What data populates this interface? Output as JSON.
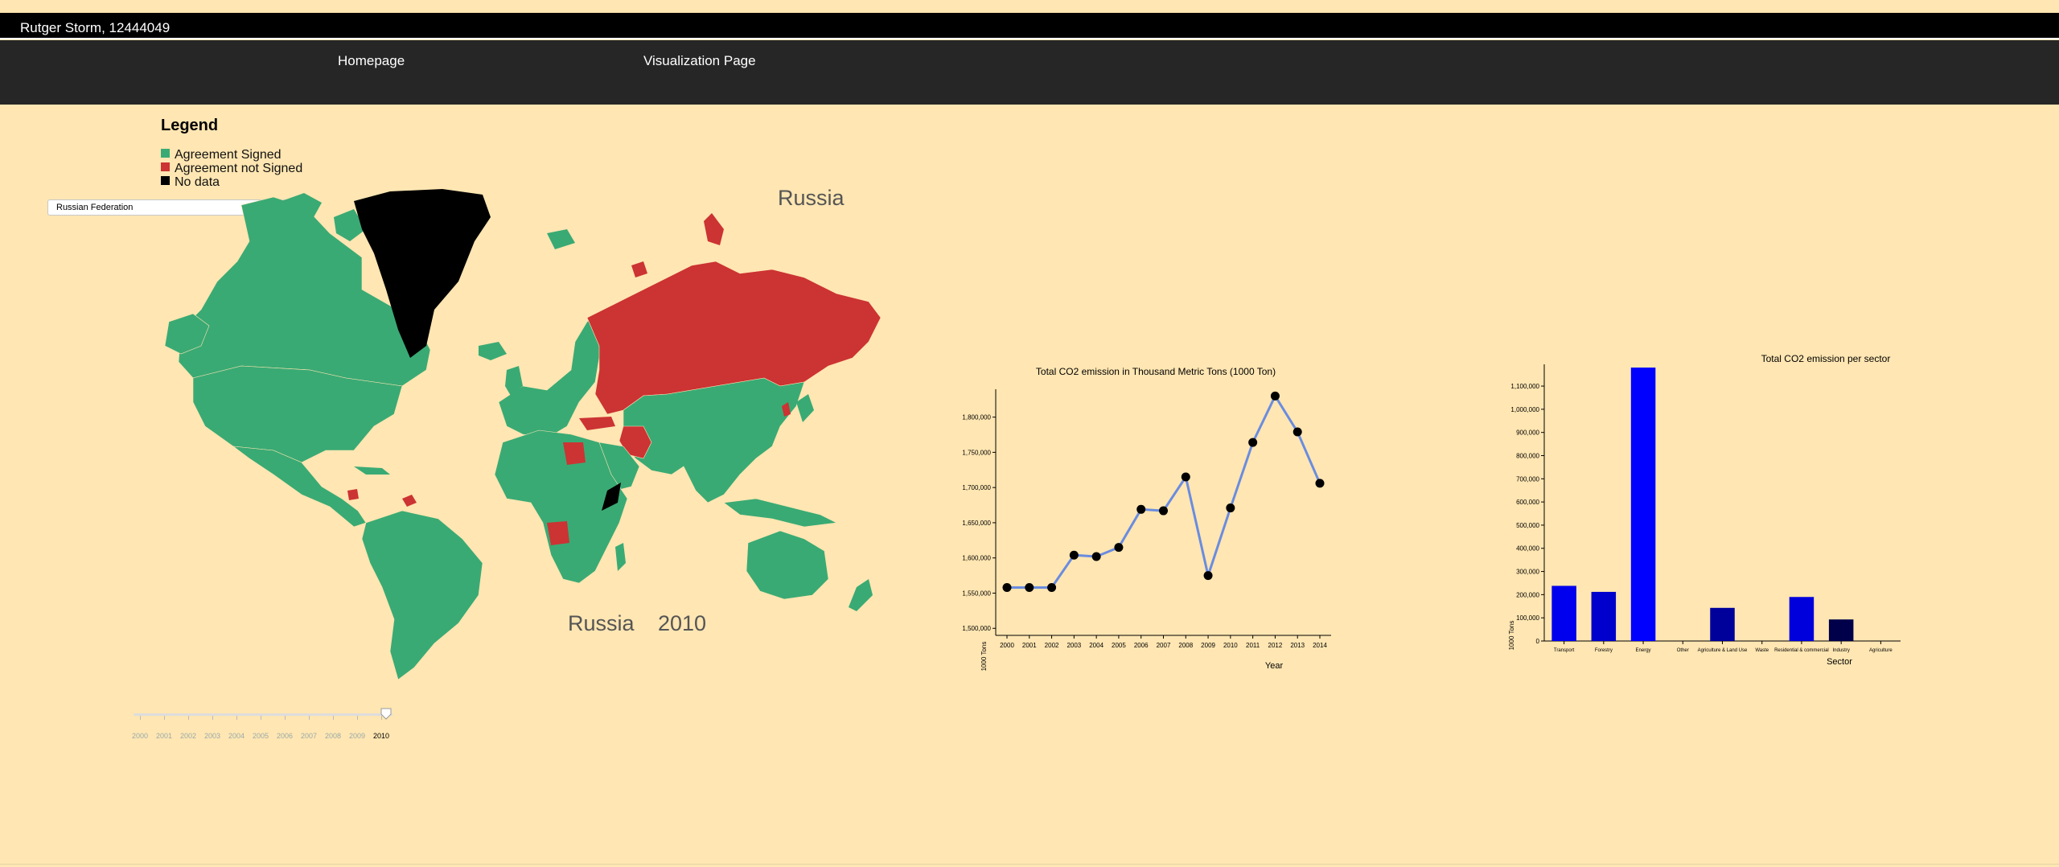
{
  "header": {
    "author": "Rutger Storm, 12444049"
  },
  "nav": {
    "homepage": "Homepage",
    "visualization": "Visualization Page"
  },
  "legend": {
    "title": "Legend",
    "items": [
      {
        "label": "Agreement Signed",
        "color": "#3aaa74"
      },
      {
        "label": "Agreement not Signed",
        "color": "#cc3333"
      },
      {
        "label": "No data",
        "color": "#000000"
      }
    ]
  },
  "selector": {
    "value": "Russian Federation"
  },
  "map": {
    "country_label": "Russia",
    "bottom_country": "Russia",
    "bottom_year": "2010",
    "colors": {
      "signed": "#3aaa74",
      "not_signed": "#cc3333",
      "no_data": "#000000"
    }
  },
  "slider": {
    "years": [
      "2000",
      "2001",
      "2002",
      "2003",
      "2004",
      "2005",
      "2006",
      "2007",
      "2008",
      "2009",
      "2010"
    ],
    "selected": "2010"
  },
  "chart_data": [
    {
      "type": "line",
      "title": "Total CO2 emission in Thousand Metric Tons (1000 Ton)",
      "xlabel": "Year",
      "ylabel": "1000 Tons",
      "x": [
        2000,
        2001,
        2002,
        2003,
        2004,
        2005,
        2006,
        2007,
        2008,
        2009,
        2010,
        2011,
        2012,
        2013,
        2014
      ],
      "y": [
        1558000,
        1558000,
        1558000,
        1604000,
        1602000,
        1615000,
        1669000,
        1667000,
        1715000,
        1575000,
        1671000,
        1764000,
        1830000,
        1779000,
        1706000
      ],
      "ylim": [
        1490000,
        1835000
      ],
      "yticks": [
        1500000,
        1550000,
        1600000,
        1650000,
        1700000,
        1750000,
        1800000
      ],
      "ytick_labels": [
        "1,500,000",
        "1,550,000",
        "1,600,000",
        "1,650,000",
        "1,700,000",
        "1,750,000",
        "1,800,000"
      ],
      "line_color": "#6a8ce0",
      "marker_color": "#000000"
    },
    {
      "type": "bar",
      "title": "Total CO2 emission per sector",
      "xlabel": "Sector",
      "ylabel": "1000 Tons",
      "categories": [
        "Transport",
        "Forestry",
        "Energy",
        "Other",
        "Agriculture & Land Use",
        "Waste",
        "Residential & commercial",
        "Industry",
        "Agriculture"
      ],
      "values": [
        238000,
        212000,
        1180000,
        0,
        143000,
        0,
        190000,
        93000,
        0
      ],
      "bar_colors": [
        "#0000ee",
        "#0000cc",
        "#0000ff",
        "#000000",
        "#00009a",
        "#000000",
        "#0000dd",
        "#00004a",
        "#000000"
      ],
      "ylim": [
        0,
        1180000
      ],
      "yticks": [
        0,
        100000,
        200000,
        300000,
        400000,
        500000,
        600000,
        700000,
        800000,
        900000,
        1000000,
        1100000
      ],
      "ytick_labels": [
        "0",
        "100,000",
        "200,000",
        "300,000",
        "400,000",
        "500,000",
        "600,000",
        "700,000",
        "800,000",
        "900,000",
        "1,000,000",
        "1,100,000"
      ]
    }
  ]
}
